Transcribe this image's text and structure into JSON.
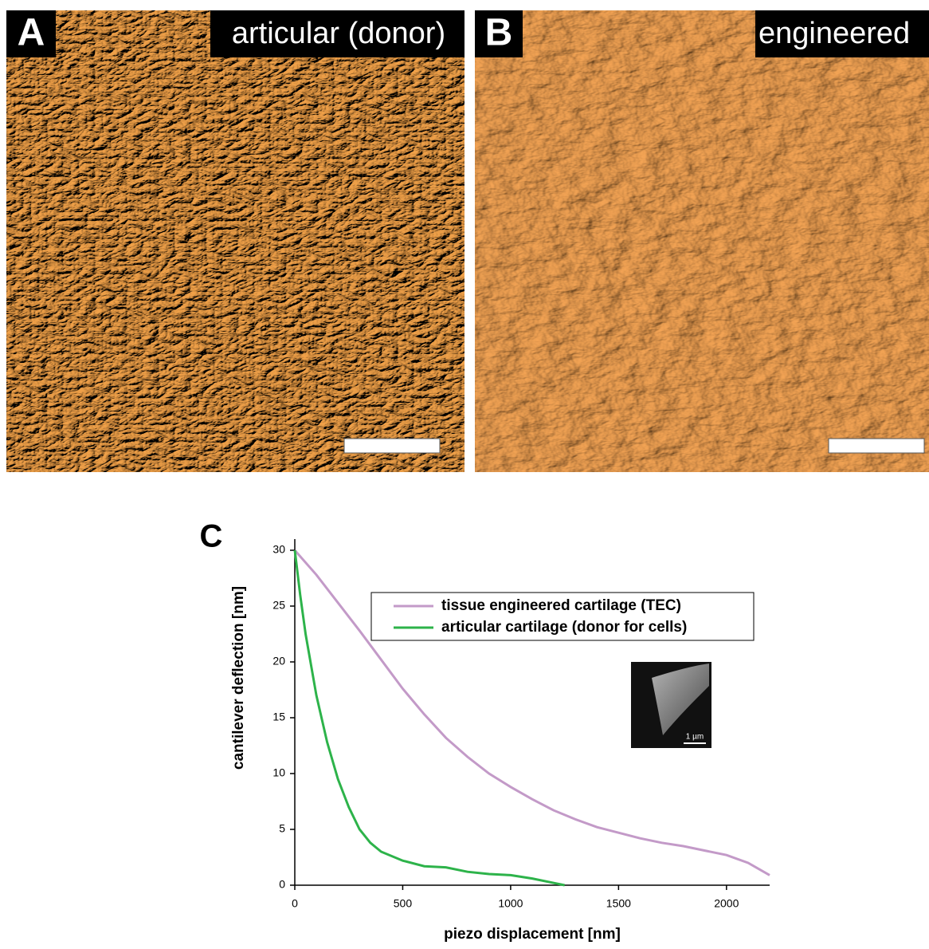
{
  "panels": [
    {
      "letter": "A",
      "caption": "articular (donor)"
    },
    {
      "letter": "B",
      "caption": "engineered"
    }
  ],
  "chart_data": {
    "type": "line",
    "panel_letter": "C",
    "inset_scale": "1 µm",
    "xlabel": "piezo displacement [nm]",
    "ylabel": "cantilever deflection [nm]",
    "xlim": [
      0,
      2200
    ],
    "ylim": [
      0,
      31
    ],
    "xticks": [
      0,
      500,
      1000,
      1500,
      2000
    ],
    "yticks": [
      0,
      5,
      10,
      15,
      20,
      25,
      30
    ],
    "legend": "upper right",
    "series": [
      {
        "name": "tissue engineered cartilage (TEC)",
        "color": "#c39ac8",
        "x": [
          0,
          100,
          200,
          300,
          400,
          500,
          600,
          700,
          800,
          900,
          1000,
          1100,
          1200,
          1300,
          1400,
          1500,
          1600,
          1700,
          1800,
          1900,
          2000,
          2100,
          2200
        ],
        "values": [
          30,
          27.8,
          25.3,
          22.8,
          20.2,
          17.6,
          15.3,
          13.2,
          11.5,
          10.0,
          8.8,
          7.7,
          6.7,
          5.9,
          5.2,
          4.7,
          4.2,
          3.8,
          3.5,
          3.1,
          2.7,
          2.0,
          0.9
        ]
      },
      {
        "name": "articular cartilage (donor for cells)",
        "color": "#2db34a",
        "x": [
          0,
          25,
          50,
          100,
          150,
          200,
          250,
          300,
          350,
          400,
          500,
          600,
          700,
          800,
          900,
          1000,
          1100,
          1200,
          1250
        ],
        "values": [
          30,
          26,
          22.5,
          17,
          12.8,
          9.5,
          7,
          5,
          3.8,
          3,
          2.2,
          1.7,
          1.6,
          1.2,
          1.0,
          0.9,
          0.6,
          0.2,
          0
        ]
      }
    ]
  }
}
